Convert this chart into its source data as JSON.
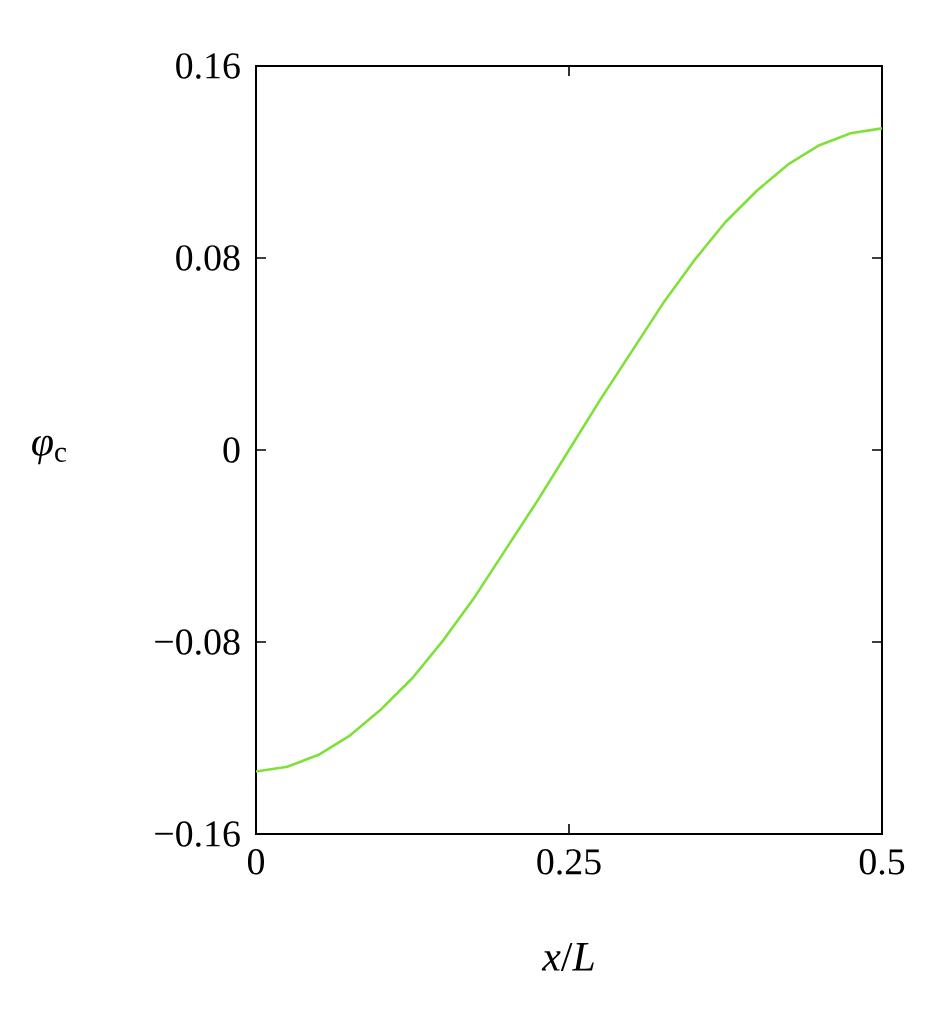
{
  "chart_data": {
    "type": "line",
    "xlabel": "*x*/*L*",
    "ylabel": "*φ*$_{c}$",
    "x": [
      0,
      0.025,
      0.05,
      0.075,
      0.1,
      0.125,
      0.15,
      0.175,
      0.2,
      0.225,
      0.25,
      0.275,
      0.3,
      0.325,
      0.35,
      0.375,
      0.4,
      0.425,
      0.45,
      0.475,
      0.5
    ],
    "series": [
      {
        "color": "#7fe03a",
        "values": [
          -0.134,
          -0.132,
          -0.127,
          -0.119,
          -0.108,
          -0.095,
          -0.079,
          -0.061,
          -0.041,
          -0.021,
          0,
          0.021,
          0.041,
          0.061,
          0.079,
          0.095,
          0.108,
          0.119,
          0.127,
          0.132,
          0.134
        ]
      }
    ],
    "xlim": [
      0,
      0.5
    ],
    "ylim": [
      -0.16,
      0.16
    ],
    "xticks": [
      0,
      0.25,
      0.5
    ],
    "yticks": [
      {
        "value": -0.16,
        "label": "−0.16"
      },
      {
        "value": -0.08,
        "label": "−0.08"
      },
      0,
      0.08,
      0.16
    ],
    "marker": "none",
    "line_style": "solid"
  }
}
